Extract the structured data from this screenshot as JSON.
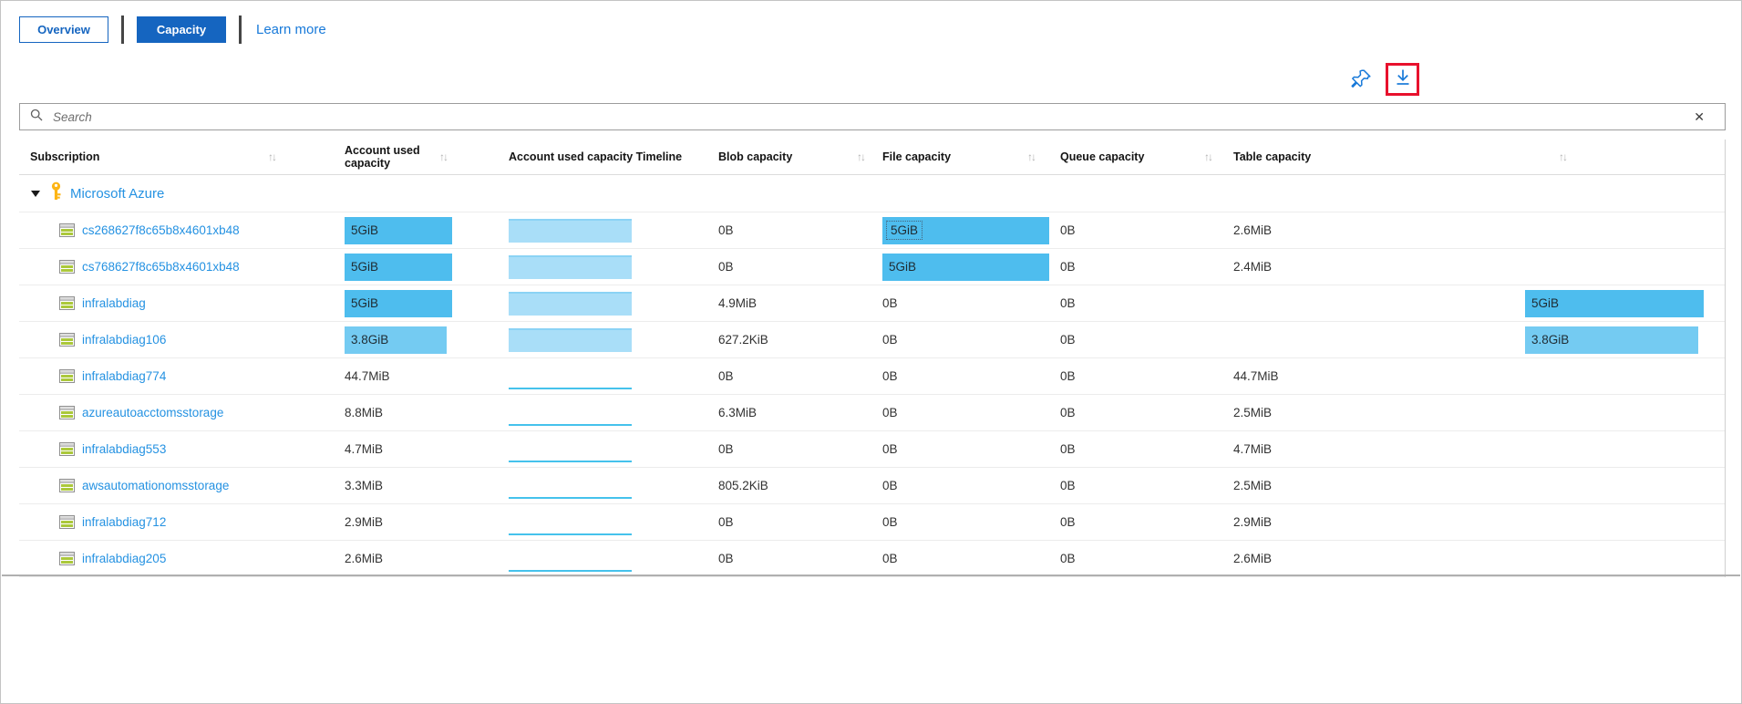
{
  "tabs": {
    "overview": "Overview",
    "capacity": "Capacity",
    "learn_more": "Learn more"
  },
  "toolbar": {
    "pin_icon": "pushpin-icon",
    "download_icon": "download-icon",
    "download_highlighted": true
  },
  "search": {
    "placeholder": "Search",
    "value": "",
    "clear_icon": "✕",
    "search_icon": "magnifier-icon"
  },
  "table": {
    "columns": [
      {
        "label": "Subscription",
        "sortable": true
      },
      {
        "label": "Account used capacity",
        "sortable": true
      },
      {
        "label": "Account used capacity Timeline",
        "sortable": false
      },
      {
        "label": "Blob capacity",
        "sortable": true
      },
      {
        "label": "File capacity",
        "sortable": true
      },
      {
        "label": "Queue capacity",
        "sortable": true
      },
      {
        "label": "Table capacity",
        "sortable": true
      }
    ],
    "group": {
      "label": "Microsoft Azure",
      "expanded": true,
      "icon": "key-icon"
    },
    "rows": [
      {
        "name": "cs268627f8c65b8x4601xb48",
        "account": {
          "text": "5GiB",
          "bar": true,
          "tone": "dark",
          "fill": 1
        },
        "timeline": "area",
        "blob": "0B",
        "file": {
          "text": "5GiB",
          "bar": true,
          "tone": "dark",
          "fill": 1,
          "focused": true
        },
        "queue": "0B",
        "table": {
          "text": "2.6MiB",
          "bar": false
        }
      },
      {
        "name": "cs768627f8c65b8x4601xb48",
        "account": {
          "text": "5GiB",
          "bar": true,
          "tone": "dark",
          "fill": 1
        },
        "timeline": "area",
        "blob": "0B",
        "file": {
          "text": "5GiB",
          "bar": true,
          "tone": "dark",
          "fill": 1
        },
        "queue": "0B",
        "table": {
          "text": "2.4MiB",
          "bar": false
        }
      },
      {
        "name": "infralabdiag",
        "account": {
          "text": "5GiB",
          "bar": true,
          "tone": "dark",
          "fill": 1
        },
        "timeline": "area",
        "blob": "4.9MiB",
        "file": {
          "text": "0B",
          "bar": false
        },
        "queue": "0B",
        "table": {
          "text": "5GiB",
          "bar": true,
          "tone": "dark",
          "fill": 1
        }
      },
      {
        "name": "infralabdiag106",
        "account": {
          "text": "3.8GiB",
          "bar": true,
          "tone": "light",
          "fill": 0.95
        },
        "timeline": "area",
        "blob": "627.2KiB",
        "file": {
          "text": "0B",
          "bar": false
        },
        "queue": "0B",
        "table": {
          "text": "3.8GiB",
          "bar": true,
          "tone": "light",
          "fill": 0.97
        }
      },
      {
        "name": "infralabdiag774",
        "account": {
          "text": "44.7MiB",
          "bar": false
        },
        "timeline": "flat",
        "blob": "0B",
        "file": {
          "text": "0B",
          "bar": false
        },
        "queue": "0B",
        "table": {
          "text": "44.7MiB",
          "bar": false
        }
      },
      {
        "name": "azureautoacctomsstorage",
        "account": {
          "text": "8.8MiB",
          "bar": false
        },
        "timeline": "flat",
        "blob": "6.3MiB",
        "file": {
          "text": "0B",
          "bar": false
        },
        "queue": "0B",
        "table": {
          "text": "2.5MiB",
          "bar": false
        }
      },
      {
        "name": "infralabdiag553",
        "account": {
          "text": "4.7MiB",
          "bar": false
        },
        "timeline": "flat",
        "blob": "0B",
        "file": {
          "text": "0B",
          "bar": false
        },
        "queue": "0B",
        "table": {
          "text": "4.7MiB",
          "bar": false
        }
      },
      {
        "name": "awsautomationomsstorage",
        "account": {
          "text": "3.3MiB",
          "bar": false
        },
        "timeline": "flat",
        "blob": "805.2KiB",
        "file": {
          "text": "0B",
          "bar": false
        },
        "queue": "0B",
        "table": {
          "text": "2.5MiB",
          "bar": false
        }
      },
      {
        "name": "infralabdiag712",
        "account": {
          "text": "2.9MiB",
          "bar": false
        },
        "timeline": "flat",
        "blob": "0B",
        "file": {
          "text": "0B",
          "bar": false
        },
        "queue": "0B",
        "table": {
          "text": "2.9MiB",
          "bar": false
        }
      },
      {
        "name": "infralabdiag205",
        "account": {
          "text": "2.6MiB",
          "bar": false
        },
        "timeline": "flat",
        "blob": "0B",
        "file": {
          "text": "0B",
          "bar": false
        },
        "queue": "0B",
        "table": {
          "text": "2.6MiB",
          "bar": false
        }
      }
    ]
  },
  "colors": {
    "accent_blue": "#1565c0",
    "link_blue": "#2592e2",
    "learn_more_blue": "#1779d9",
    "bar_blue": "#4ebdee",
    "bar_blue_light": "#74cbf2",
    "timeline_fill": "#a9def8",
    "timeline_flat_line": "#45c2ec",
    "highlight_red": "#e8112d",
    "key_gold": "#fdb515",
    "storage_icon_green": "#abc83b"
  }
}
